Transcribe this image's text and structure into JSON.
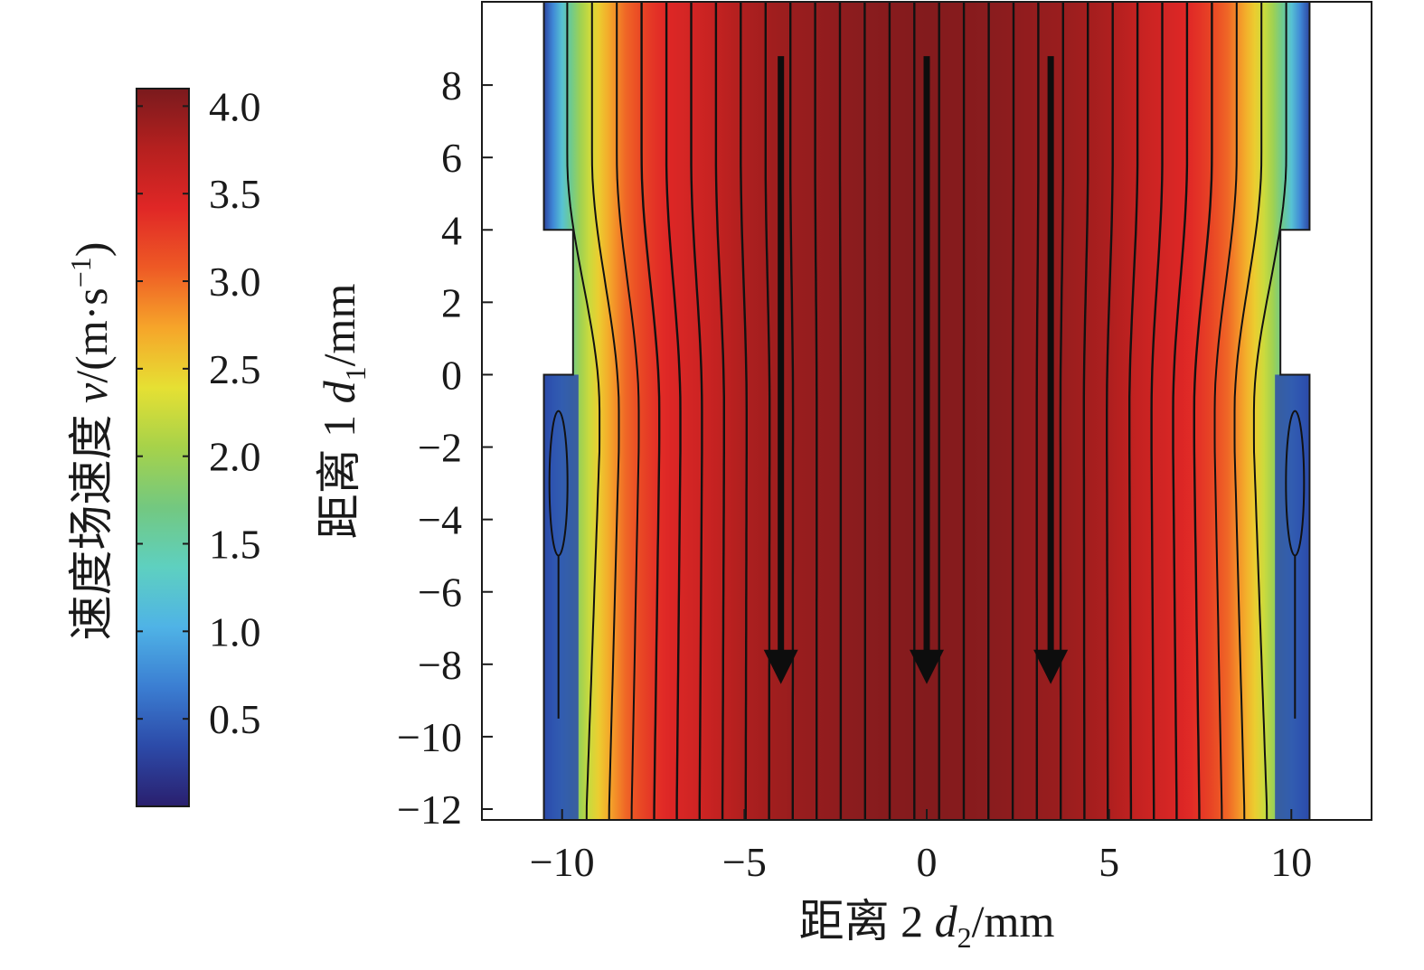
{
  "chart_data": {
    "type": "heatmap",
    "title": "",
    "xlabel": {
      "prefix": "距离 2 ",
      "var": "d",
      "sub": "2",
      "unit": "/mm"
    },
    "ylabel": {
      "prefix": "距离 1 ",
      "var": "d",
      "sub": "1",
      "unit": "/mm"
    },
    "xlim": [
      -12.2,
      12.2
    ],
    "ylim": [
      -12.3,
      10.3
    ],
    "x_ticks": [
      {
        "value": -10,
        "label": "−10"
      },
      {
        "value": -5,
        "label": "−5"
      },
      {
        "value": 0,
        "label": "0"
      },
      {
        "value": 5,
        "label": "5"
      },
      {
        "value": 10,
        "label": "10"
      }
    ],
    "y_ticks": [
      {
        "value": 8,
        "label": "8"
      },
      {
        "value": 6,
        "label": "6"
      },
      {
        "value": 4,
        "label": "4"
      },
      {
        "value": 2,
        "label": "2"
      },
      {
        "value": 0,
        "label": "0"
      },
      {
        "value": -2,
        "label": "−2"
      },
      {
        "value": -4,
        "label": "−4"
      },
      {
        "value": -6,
        "label": "−6"
      },
      {
        "value": -8,
        "label": "−8"
      },
      {
        "value": -10,
        "label": "−10"
      },
      {
        "value": -12,
        "label": "−12"
      }
    ],
    "domain": {
      "upper": {
        "y_range": [
          4,
          10.3
        ],
        "half_width": 10.5
      },
      "neck": {
        "y_range": [
          0,
          4
        ],
        "half_width": 9.7
      },
      "lower": {
        "y_range": [
          -12.3,
          0
        ],
        "half_width": 10.5
      }
    },
    "colorbar": {
      "title": {
        "prefix": "速度场速度 ",
        "var": "v",
        "unit_open": "/(m·s",
        "unit_exp": "−1",
        "unit_close": ")"
      },
      "min": 0.0,
      "max": 4.1,
      "ticks": [
        {
          "value": 4.0,
          "label": "4.0"
        },
        {
          "value": 3.5,
          "label": "3.5"
        },
        {
          "value": 3.0,
          "label": "3.0"
        },
        {
          "value": 2.5,
          "label": "2.5"
        },
        {
          "value": 2.0,
          "label": "2.0"
        },
        {
          "value": 1.5,
          "label": "1.5"
        },
        {
          "value": 1.0,
          "label": "1.0"
        },
        {
          "value": 0.5,
          "label": "0.5"
        }
      ],
      "colormap": [
        "#2a1f6e",
        "#2c4aa8",
        "#3b7ed2",
        "#4fb3e6",
        "#5ed0c0",
        "#73c880",
        "#a6d24a",
        "#e6e033",
        "#f6a52a",
        "#ee5a25",
        "#e02726",
        "#b5201f",
        "#7a1a1d"
      ]
    },
    "velocity_profile": {
      "x": [
        0,
        2,
        4,
        5,
        6,
        7,
        7.6,
        8.3,
        9.0,
        9.6,
        10.0,
        10.5
      ],
      "v": [
        4.05,
        4.0,
        3.9,
        3.8,
        3.6,
        3.45,
        3.3,
        3.0,
        2.5,
        1.9,
        1.2,
        0.3
      ]
    },
    "streamline_arrows": [
      {
        "x": -4.0,
        "y": -8.0,
        "direction": "down"
      },
      {
        "x": 0.0,
        "y": -8.0,
        "direction": "down"
      },
      {
        "x": 3.4,
        "y": -8.0,
        "direction": "down"
      }
    ]
  }
}
